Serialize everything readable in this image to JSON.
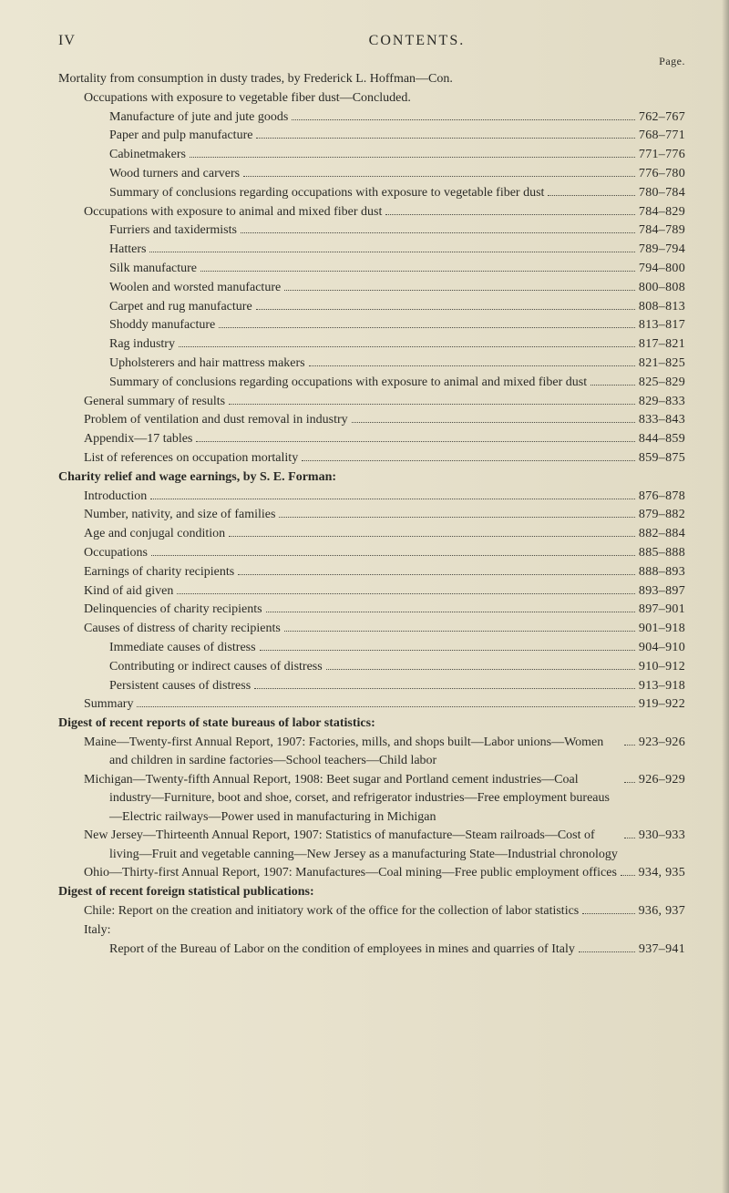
{
  "header": {
    "roman": "IV",
    "title": "CONTENTS.",
    "page_label": "Page."
  },
  "colors": {
    "background": "#e8e2cd",
    "text": "#2a2a26",
    "leader": "#4a4a42"
  },
  "entries": [
    {
      "indent": 0,
      "label": "Mortality from consumption in dusty trades, by Frederick L. Hoffman—Con.",
      "pages": "",
      "no_leader": true
    },
    {
      "indent": 1,
      "label": "Occupations with exposure to vegetable fiber dust—Concluded.",
      "pages": "",
      "no_leader": true
    },
    {
      "indent": 2,
      "label": "Manufacture of jute and jute goods",
      "pages": "762–767"
    },
    {
      "indent": 2,
      "label": "Paper and pulp manufacture",
      "pages": "768–771"
    },
    {
      "indent": 2,
      "label": "Cabinetmakers",
      "pages": "771–776"
    },
    {
      "indent": 2,
      "label": "Wood turners and carvers",
      "pages": "776–780"
    },
    {
      "indent": 2,
      "label": "Summary of conclusions regarding occupations with exposure to vegetable fiber dust",
      "pages": "780–784",
      "hanging": true
    },
    {
      "indent": 1,
      "label": "Occupations with exposure to animal and mixed fiber dust",
      "pages": "784–829"
    },
    {
      "indent": 2,
      "label": "Furriers and taxidermists",
      "pages": "784–789"
    },
    {
      "indent": 2,
      "label": "Hatters",
      "pages": "789–794"
    },
    {
      "indent": 2,
      "label": "Silk manufacture",
      "pages": "794–800"
    },
    {
      "indent": 2,
      "label": "Woolen and worsted manufacture",
      "pages": "800–808"
    },
    {
      "indent": 2,
      "label": "Carpet and rug manufacture",
      "pages": "808–813"
    },
    {
      "indent": 2,
      "label": "Shoddy manufacture",
      "pages": "813–817"
    },
    {
      "indent": 2,
      "label": "Rag industry",
      "pages": "817–821"
    },
    {
      "indent": 2,
      "label": "Upholsterers and hair mattress makers",
      "pages": "821–825"
    },
    {
      "indent": 2,
      "label": "Summary of conclusions regarding occupations with exposure to animal and mixed fiber dust",
      "pages": "825–829",
      "hanging": true
    },
    {
      "indent": 1,
      "label": "General summary of results",
      "pages": "829–833"
    },
    {
      "indent": 1,
      "label": "Problem of ventilation and dust removal in industry",
      "pages": "833–843"
    },
    {
      "indent": 1,
      "label": "Appendix—17 tables",
      "pages": "844–859"
    },
    {
      "indent": 1,
      "label": "List of references on occupation mortality",
      "pages": "859–875"
    },
    {
      "indent": 0,
      "label": "Charity relief and wage earnings, by S. E. Forman:",
      "pages": "",
      "no_leader": true,
      "bold": true
    },
    {
      "indent": 1,
      "label": "Introduction",
      "pages": "876–878"
    },
    {
      "indent": 1,
      "label": "Number, nativity, and size of families",
      "pages": "879–882"
    },
    {
      "indent": 1,
      "label": "Age and conjugal condition",
      "pages": "882–884"
    },
    {
      "indent": 1,
      "label": "Occupations",
      "pages": "885–888"
    },
    {
      "indent": 1,
      "label": "Earnings of charity recipients",
      "pages": "888–893"
    },
    {
      "indent": 1,
      "label": "Kind of aid given",
      "pages": "893–897"
    },
    {
      "indent": 1,
      "label": "Delinquencies of charity recipients",
      "pages": "897–901"
    },
    {
      "indent": 1,
      "label": "Causes of distress of charity recipients",
      "pages": "901–918"
    },
    {
      "indent": 2,
      "label": "Immediate causes of distress",
      "pages": "904–910"
    },
    {
      "indent": 2,
      "label": "Contributing or indirect causes of distress",
      "pages": "910–912"
    },
    {
      "indent": 2,
      "label": "Persistent causes of distress",
      "pages": "913–918"
    },
    {
      "indent": 1,
      "label": "Summary",
      "pages": "919–922"
    },
    {
      "indent": 0,
      "label": "Digest of recent reports of state bureaus of labor statistics:",
      "pages": "",
      "no_leader": true,
      "bold": true
    },
    {
      "indent": 1,
      "label": "Maine—Twenty-first Annual Report, 1907: Factories, mills, and shops built—Labor unions—Women and children in sardine factories—School teachers—Child labor",
      "pages": "923–926",
      "hanging": true
    },
    {
      "indent": 1,
      "label": "Michigan—Twenty-fifth Annual Report, 1908: Beet sugar and Portland cement industries—Coal industry—Furniture, boot and shoe, corset, and refrigerator industries—Free employment bureaus—Electric railways—Power used in manufacturing in Michigan",
      "pages": "926–929",
      "hanging": true
    },
    {
      "indent": 1,
      "label": "New Jersey—Thirteenth Annual Report, 1907: Statistics of manufacture—Steam railroads—Cost of living—Fruit and vegetable canning—New Jersey as a manufacturing State—Industrial chronology",
      "pages": "930–933",
      "hanging": true
    },
    {
      "indent": 1,
      "label": "Ohio—Thirty-first Annual Report, 1907: Manufactures—Coal mining—Free public employment offices",
      "pages": "934, 935",
      "hanging": true
    },
    {
      "indent": 0,
      "label": "Digest of recent foreign statistical publications:",
      "pages": "",
      "no_leader": true,
      "bold": true
    },
    {
      "indent": 1,
      "label": "Chile: Report on the creation and initiatory work of the office for the collection of labor statistics",
      "pages": "936, 937",
      "hanging": true
    },
    {
      "indent": 1,
      "label": "Italy:",
      "pages": "",
      "no_leader": true
    },
    {
      "indent": 2,
      "label": "Report of the Bureau of Labor on the condition of employees in mines and quarries of Italy",
      "pages": "937–941",
      "hanging": true
    }
  ]
}
